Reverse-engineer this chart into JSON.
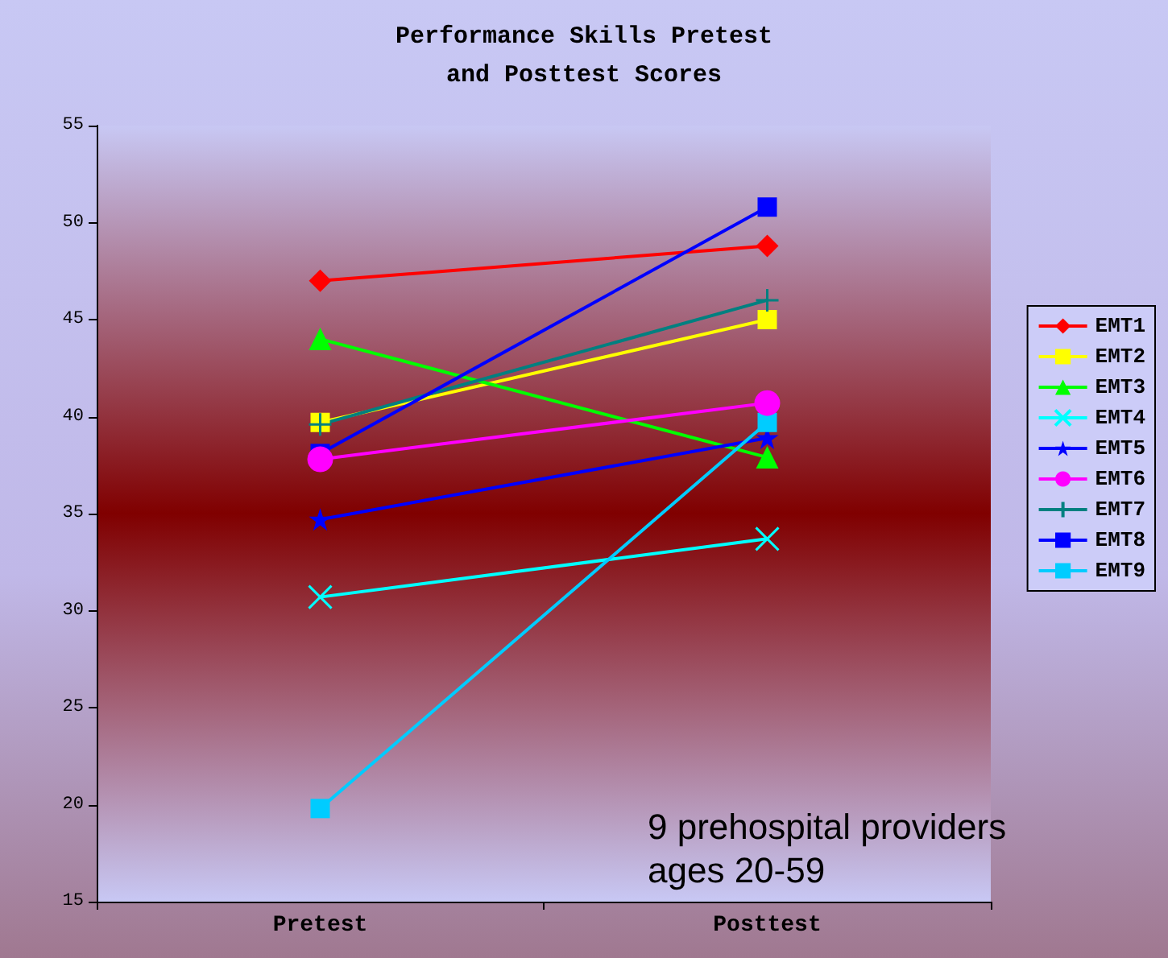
{
  "chart_data": {
    "type": "line",
    "title": "Performance Skills Pretest\nand Posttest Scores",
    "categories": [
      "Pretest",
      "Posttest"
    ],
    "ylim": [
      15,
      55
    ],
    "yticks": [
      15,
      20,
      25,
      30,
      35,
      40,
      45,
      50,
      55
    ],
    "grid": false,
    "legend": "right",
    "annotations": [
      "9 prehospital providers\nages 20-59"
    ],
    "series": [
      {
        "name": "EMT1",
        "color": "#ff0000",
        "marker": "diamond",
        "values": [
          47.0,
          48.8
        ]
      },
      {
        "name": "EMT2",
        "color": "#ffff00",
        "marker": "square",
        "values": [
          39.7,
          45.0
        ]
      },
      {
        "name": "EMT3",
        "color": "#00ff00",
        "marker": "triangle",
        "values": [
          44.0,
          37.9
        ]
      },
      {
        "name": "EMT4",
        "color": "#00ffff",
        "marker": "cross",
        "values": [
          30.7,
          33.7
        ]
      },
      {
        "name": "EMT5",
        "color": "#0000ff",
        "marker": "star",
        "values": [
          34.7,
          38.9
        ]
      },
      {
        "name": "EMT6",
        "color": "#ff00ff",
        "marker": "circle",
        "values": [
          37.8,
          40.7
        ]
      },
      {
        "name": "EMT7",
        "color": "#008080",
        "marker": "plus",
        "values": [
          39.6,
          46.0
        ]
      },
      {
        "name": "EMT8",
        "color": "#0000ff",
        "marker": "square",
        "values": [
          38.1,
          50.8
        ]
      },
      {
        "name": "EMT9",
        "color": "#00ccff",
        "marker": "square",
        "values": [
          19.8,
          39.7
        ]
      }
    ]
  }
}
